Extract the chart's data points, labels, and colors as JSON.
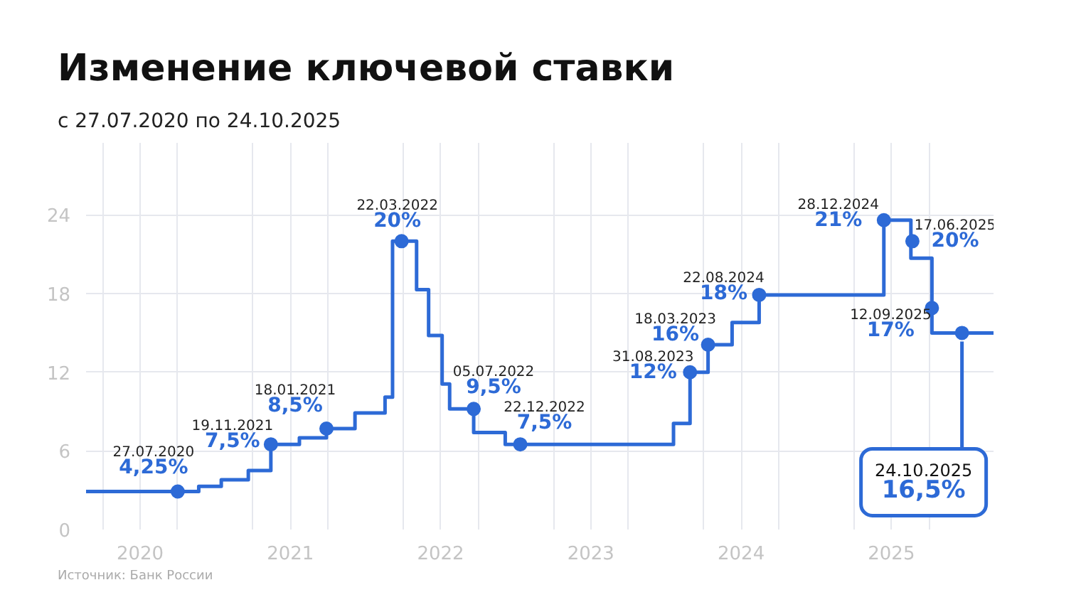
{
  "chart_data": {
    "type": "step",
    "title": "Изменение ключевой ставки",
    "subtitle": "с 27.07.2020 по 24.10.2025",
    "xlim": [
      2019.64,
      2025.68
    ],
    "ylim": [
      0,
      29.5
    ],
    "xticks": [
      {
        "value": 2019.75,
        "label": null
      },
      2020,
      {
        "value": 2020.25,
        "label": null
      },
      {
        "value": 2020.75,
        "label": null
      },
      2021,
      {
        "value": 2021.25,
        "label": null
      },
      {
        "value": 2021.75,
        "label": null
      },
      2022,
      {
        "value": 2022.25,
        "label": null
      },
      {
        "value": 2022.75,
        "label": null
      },
      2023,
      {
        "value": 2023.25,
        "label": null
      },
      {
        "value": 2023.75,
        "label": null
      },
      2024,
      {
        "value": 2024.25,
        "label": null
      },
      {
        "value": 2024.75,
        "label": null
      },
      2025,
      {
        "value": 2025.25,
        "label": null
      }
    ],
    "yticks": [
      0,
      6,
      12,
      18,
      24
    ],
    "grid": true,
    "series": [
      {
        "color": "#2d6ad6",
        "x": [
          2019.64,
          2020.39,
          2020.54,
          2020.72,
          2020.87,
          2021.06,
          2021.24,
          2021.43,
          2021.63,
          2021.68,
          2021.84,
          2021.92,
          2022.01,
          2022.06,
          2022.22,
          2022.43,
          2023.55,
          2023.66,
          2023.78,
          2023.94,
          2024.12,
          2024.95,
          2025.13,
          2025.27,
          2025.68
        ],
        "values": [
          2.9,
          3.3,
          3.8,
          4.5,
          6.5,
          7.0,
          7.7,
          8.9,
          10.1,
          22.0,
          18.3,
          14.8,
          11.1,
          9.2,
          7.4,
          6.5,
          8.1,
          12.0,
          14.1,
          15.8,
          17.9,
          23.6,
          20.7,
          15.0,
          15.0
        ]
      },
      {
        "type": "scatter",
        "color": "#2d6ad6",
        "x": [
          2020.25,
          2020.87,
          2021.24,
          2021.74,
          2022.22,
          2022.53,
          2023.66,
          2023.78,
          2024.12,
          2024.95,
          2025.14,
          2025.27
        ],
        "values": [
          2.9,
          6.5,
          7.7,
          22.0,
          9.2,
          6.5,
          12.0,
          14.1,
          17.9,
          23.6,
          22.0,
          16.9
        ]
      },
      {
        "type": "scatter",
        "color": "#2d6ad6",
        "x": [
          2025.47
        ],
        "values": [
          15.0
        ]
      }
    ],
    "annotations": [
      {
        "text": "27.07.2020\n4,25%",
        "x": 2020.25,
        "y": 2.9
      },
      {
        "text": "19.11.2021\n7,5%",
        "x": 2020.87,
        "y": 6.5
      },
      {
        "text": "18.01.2021\n8,5%",
        "x": 2021.24,
        "y": 7.7
      },
      {
        "text": "22.03.2022\n20%",
        "x": 2021.74,
        "y": 22.0
      },
      {
        "text": "05.07.2022\n9,5%",
        "x": 2022.22,
        "y": 9.2
      },
      {
        "text": "22.12.2022\n7,5%",
        "x": 2022.53,
        "y": 6.5
      },
      {
        "text": "31.08.2023\n12%",
        "x": 2023.66,
        "y": 12.0
      },
      {
        "text": "18.03.2023\n16%",
        "x": 2023.78,
        "y": 14.1
      },
      {
        "text": "22.08.2024\n18%",
        "x": 2024.12,
        "y": 17.9
      },
      {
        "text": "28.12.2024\n21%",
        "x": 2024.95,
        "y": 23.6
      },
      {
        "text": "17.06.2025\n20%",
        "x": 2025.14,
        "y": 22.0
      },
      {
        "text": "12.09.2025\n17%",
        "x": 2025.27,
        "y": 16.9
      },
      {
        "text": "24.10.2025\n16,5%",
        "x": 2025.47,
        "y": 15.0
      },
      "Источник: Банк России"
    ]
  }
}
